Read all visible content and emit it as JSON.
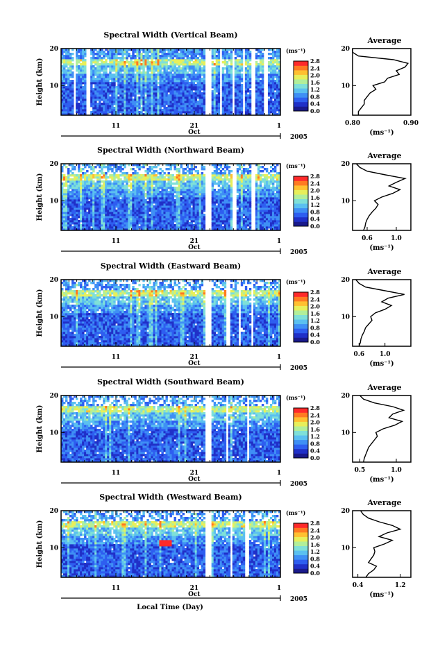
{
  "figure": {
    "xlabel": "Local Time (Day)",
    "month_label": "Oct",
    "year_label": "2005",
    "x_tick_labels": [
      "11",
      "21",
      "1"
    ],
    "y_tick_labels": [
      "10",
      "20"
    ],
    "ylabel": "Height (km)",
    "colorbar_unit": "(ms⁻¹)",
    "colorbar_ticks": [
      "0.0",
      "0.4",
      "0.8",
      "1.2",
      "1.6",
      "2.0",
      "2.4",
      "2.8"
    ],
    "avg_title": "Average",
    "avg_xlabel": "(ms⁻¹)"
  },
  "colors": {
    "colormap": [
      "#1a1a8c",
      "#2030c8",
      "#2e5ef0",
      "#3f8ff5",
      "#5bc0f0",
      "#7fe0d8",
      "#b2ef9a",
      "#e8ef5a",
      "#ffc030",
      "#ff7a22",
      "#ff2a2a"
    ],
    "axis": "#000000"
  },
  "chart_data": [
    {
      "type": "heatmap",
      "title": "Spectral Width (Vertical Beam)",
      "ylabel": "Height (km)",
      "ylim": [
        2,
        20
      ],
      "yticks": [
        10,
        20
      ],
      "x_range_days": [
        4,
        32
      ],
      "x_tick_labels": [
        "11",
        "21",
        "1"
      ],
      "colorbar": {
        "label": "(ms⁻¹)",
        "range": [
          0.0,
          2.8
        ],
        "ticks": [
          0.0,
          0.4,
          0.8,
          1.2,
          1.6,
          2.0,
          2.4,
          2.8
        ]
      },
      "data_gaps_days": [
        [
          5.6,
          5.9
        ],
        [
          7.3,
          7.6
        ],
        [
          22.5,
          23.3
        ],
        [
          24.2,
          24.5
        ],
        [
          25.8,
          26.1
        ],
        [
          27.2,
          27.5
        ],
        [
          28.4,
          28.7
        ],
        [
          30.0,
          30.4
        ]
      ],
      "description_value_levels": {
        "below_12km": 0.8,
        "tropopause_13_17km": 1.8,
        "above_17km": 1.0
      },
      "average_profile": {
        "title": "Average",
        "xlim": [
          0.8,
          0.9
        ],
        "xticks": [
          "0.80",
          "0.90"
        ],
        "ylim": [
          2,
          20
        ],
        "height_km": [
          2,
          3,
          4,
          5,
          6,
          7,
          8,
          9,
          10,
          11,
          12,
          13,
          14,
          15,
          16,
          17,
          18,
          19,
          20
        ],
        "width_ms": [
          0.81,
          0.81,
          0.815,
          0.82,
          0.82,
          0.825,
          0.83,
          0.84,
          0.835,
          0.855,
          0.86,
          0.88,
          0.875,
          0.89,
          0.895,
          0.87,
          0.81,
          0.8,
          0.8
        ]
      }
    },
    {
      "type": "heatmap",
      "title": "Spectral Width (Northward Beam)",
      "ylabel": "Height (km)",
      "ylim": [
        2,
        20
      ],
      "yticks": [
        10,
        20
      ],
      "x_range_days": [
        4,
        32
      ],
      "x_tick_labels": [
        "11",
        "21",
        "1"
      ],
      "colorbar": {
        "label": "(ms⁻¹)",
        "range": [
          0.0,
          2.8
        ],
        "ticks": [
          0.0,
          0.4,
          0.8,
          1.2,
          1.6,
          2.0,
          2.4,
          2.8
        ]
      },
      "data_gaps_days": [
        [
          22.5,
          23.3
        ],
        [
          26.0,
          26.3
        ],
        [
          28.4,
          28.7
        ]
      ],
      "average_profile": {
        "title": "Average",
        "xlim": [
          0.4,
          1.2
        ],
        "xticks": [
          "0.6",
          "1.0"
        ],
        "ylim": [
          2,
          20
        ],
        "height_km": [
          2,
          3,
          4,
          5,
          6,
          7,
          8,
          9,
          10,
          11,
          12,
          13,
          14,
          15,
          16,
          17,
          18,
          19,
          20
        ],
        "width_ms": [
          0.55,
          0.57,
          0.58,
          0.6,
          0.63,
          0.67,
          0.72,
          0.75,
          0.7,
          0.8,
          0.95,
          1.05,
          0.9,
          1.0,
          1.12,
          0.85,
          0.6,
          0.5,
          0.45
        ]
      }
    },
    {
      "type": "heatmap",
      "title": "Spectral Width (Eastward Beam)",
      "ylabel": "Height (km)",
      "ylim": [
        2,
        20
      ],
      "yticks": [
        10,
        20
      ],
      "x_range_days": [
        4,
        32
      ],
      "x_tick_labels": [
        "11",
        "21",
        "1"
      ],
      "colorbar": {
        "label": "(ms⁻¹)",
        "range": [
          0.0,
          2.8
        ],
        "ticks": [
          0.0,
          0.4,
          0.8,
          1.2,
          1.6,
          2.0,
          2.4,
          2.8
        ]
      },
      "data_gaps_days": [
        [
          22.5,
          23.3
        ],
        [
          25.2,
          25.5
        ],
        [
          26.6,
          26.9
        ],
        [
          28.2,
          28.5
        ]
      ],
      "average_profile": {
        "title": "Average",
        "xlim": [
          0.5,
          1.4
        ],
        "xticks": [
          "0.6",
          "1.0"
        ],
        "ylim": [
          2,
          20
        ],
        "height_km": [
          2,
          3,
          4,
          5,
          6,
          7,
          8,
          9,
          10,
          11,
          12,
          13,
          14,
          15,
          16,
          17,
          18,
          19,
          20
        ],
        "width_ms": [
          0.6,
          0.62,
          0.63,
          0.65,
          0.68,
          0.7,
          0.75,
          0.8,
          0.78,
          0.85,
          1.0,
          1.1,
          0.95,
          1.05,
          1.3,
          1.0,
          0.7,
          0.6,
          0.55
        ]
      }
    },
    {
      "type": "heatmap",
      "title": "Spectral Width (Southward Beam)",
      "ylabel": "Height (km)",
      "ylim": [
        2,
        20
      ],
      "yticks": [
        10,
        20
      ],
      "x_range_days": [
        4,
        32
      ],
      "x_tick_labels": [
        "11",
        "21",
        "1"
      ],
      "colorbar": {
        "label": "(ms⁻¹)",
        "range": [
          0.0,
          2.8
        ],
        "ticks": [
          0.0,
          0.4,
          0.8,
          1.2,
          1.6,
          2.0,
          2.4,
          2.8
        ]
      },
      "data_gaps_days": [
        [
          22.5,
          23.3
        ],
        [
          25.0,
          25.3
        ],
        [
          27.8,
          28.1
        ]
      ],
      "average_profile": {
        "title": "Average",
        "xlim": [
          0.4,
          1.2
        ],
        "xticks": [
          "0.5",
          "1.0"
        ],
        "ylim": [
          2,
          20
        ],
        "height_km": [
          2,
          3,
          4,
          5,
          6,
          7,
          8,
          9,
          10,
          11,
          12,
          13,
          14,
          15,
          16,
          17,
          18,
          19,
          20
        ],
        "width_ms": [
          0.55,
          0.56,
          0.58,
          0.6,
          0.62,
          0.66,
          0.7,
          0.74,
          0.72,
          0.82,
          0.98,
          1.08,
          0.9,
          0.95,
          1.1,
          0.95,
          0.7,
          0.55,
          0.5
        ]
      }
    },
    {
      "type": "heatmap",
      "title": "Spectral Width (Westward Beam)",
      "ylabel": "Height (km)",
      "ylim": [
        2,
        20
      ],
      "yticks": [
        10,
        20
      ],
      "x_range_days": [
        4,
        32
      ],
      "x_tick_labels": [
        "11",
        "21",
        "1"
      ],
      "colorbar": {
        "label": "(ms⁻¹)",
        "range": [
          0.0,
          2.8
        ],
        "ticks": [
          0.0,
          0.4,
          0.8,
          1.2,
          1.6,
          2.0,
          2.4,
          2.8
        ]
      },
      "data_gaps_days": [
        [
          22.5,
          23.3
        ],
        [
          25.6,
          25.9
        ],
        [
          27.6,
          27.9
        ]
      ],
      "hotspot": {
        "day_range": [
          16.5,
          18.0
        ],
        "km_range": [
          10.5,
          12.0
        ],
        "value": 2.8
      },
      "average_profile": {
        "title": "Average",
        "xlim": [
          0.3,
          1.4
        ],
        "xticks": [
          "0.4",
          "1.2"
        ],
        "ylim": [
          2,
          20
        ],
        "height_km": [
          2,
          3,
          4,
          5,
          6,
          7,
          8,
          9,
          10,
          11,
          12,
          13,
          14,
          15,
          16,
          17,
          18,
          19,
          20
        ],
        "width_ms": [
          0.55,
          0.6,
          0.7,
          0.75,
          0.6,
          0.65,
          0.7,
          0.72,
          0.7,
          0.9,
          1.05,
          0.8,
          0.95,
          1.2,
          1.05,
          0.8,
          0.6,
          0.5,
          0.45
        ]
      }
    }
  ]
}
